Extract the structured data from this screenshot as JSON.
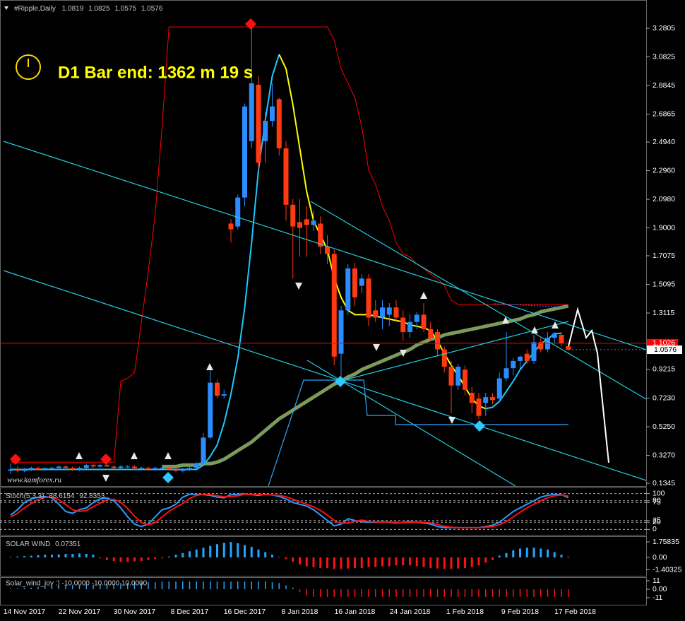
{
  "symbol": "#Ripple,Daily",
  "timer": "D1 Bar end: 1362 m 19 s",
  "watermark": "www.kamforex.ru",
  "chart_data": [
    {
      "type": "candlestick",
      "categories": [
        null,
        null,
        "14 Nov 2017",
        null,
        null,
        null,
        null,
        null,
        null,
        null,
        "22 Nov 2017",
        null,
        null,
        null,
        null,
        null,
        null,
        null,
        "30 Nov 2017",
        null,
        null,
        null,
        null,
        null,
        null,
        null,
        "8 Dec 2017",
        null,
        null,
        null,
        null,
        null,
        null,
        null,
        "16 Dec 2017",
        null,
        null,
        null,
        null,
        null,
        null,
        null,
        "8 Jan 2018",
        null,
        null,
        null,
        null,
        null,
        null,
        null,
        "16 Jan 2018",
        null,
        null,
        null,
        null,
        null,
        null,
        null,
        "24 Jan 2018",
        null,
        null,
        null,
        null,
        null,
        null,
        null,
        "1 Feb 2018",
        null,
        null,
        null,
        null,
        null,
        null,
        null,
        "9 Feb 2018",
        null,
        null,
        null,
        null,
        null,
        null,
        null,
        "17 Feb 2018"
      ],
      "open": [
        0.22,
        0.23,
        0.22,
        0.23,
        0.24,
        0.23,
        0.24,
        0.24,
        0.25,
        0.24,
        0.23,
        0.24,
        0.26,
        0.25,
        0.26,
        0.25,
        0.24,
        0.25,
        0.25,
        0.24,
        0.24,
        0.23,
        0.24,
        0.24,
        0.23,
        0.22,
        0.23,
        0.24,
        0.27,
        0.45,
        0.83,
        0.74,
        1.93,
        1.91,
        2.11,
        2.5,
        2.89,
        2.5,
        2.64,
        2.79,
        2.45,
        2.06,
        1.94,
        1.96,
        1.92,
        1.93,
        1.77,
        1.72,
        1.03,
        1.33,
        1.62,
        1.5,
        1.55,
        1.33,
        1.28,
        1.3,
        1.35,
        1.28,
        1.18,
        1.25,
        1.3,
        1.2,
        1.18,
        1.06,
        0.94,
        0.81,
        0.92,
        0.76,
        0.72,
        0.69,
        0.73,
        0.72,
        0.86,
        0.93,
        0.98,
        1.03,
        0.98,
        1.11,
        1.06,
        1.14,
        1.16,
        1.0819,
        null
      ],
      "high": [
        0.27,
        0.25,
        0.24,
        0.25,
        0.25,
        0.24,
        0.25,
        0.26,
        0.26,
        0.25,
        0.25,
        0.27,
        0.27,
        0.27,
        0.28,
        0.26,
        0.26,
        0.26,
        0.26,
        0.25,
        0.25,
        0.25,
        0.25,
        0.25,
        0.24,
        0.24,
        0.25,
        0.28,
        0.48,
        0.93,
        0.85,
        0.78,
        1.96,
        2.13,
        2.76,
        3.33,
        2.95,
        2.7,
        2.9,
        2.8,
        2.5,
        2.1,
        2.1,
        2.05,
        2.02,
        1.98,
        1.85,
        1.75,
        1.36,
        1.65,
        1.66,
        1.58,
        1.58,
        1.4,
        1.4,
        1.38,
        1.4,
        1.33,
        1.3,
        1.32,
        1.38,
        1.25,
        1.2,
        1.08,
        0.98,
        0.96,
        0.95,
        0.8,
        0.76,
        0.76,
        0.76,
        0.9,
        1.18,
        1.0,
        1.02,
        1.06,
        1.16,
        1.14,
        1.18,
        1.18,
        1.18,
        1.0825,
        null
      ],
      "low": [
        0.2,
        0.21,
        0.21,
        0.22,
        0.22,
        0.22,
        0.23,
        0.23,
        0.23,
        0.22,
        0.22,
        0.23,
        0.24,
        0.24,
        0.25,
        0.23,
        0.23,
        0.24,
        0.23,
        0.23,
        0.22,
        0.22,
        0.23,
        0.22,
        0.21,
        0.21,
        0.22,
        0.23,
        0.26,
        0.44,
        0.72,
        0.72,
        1.8,
        1.89,
        2.05,
        2.45,
        2.3,
        2.35,
        2.6,
        2.4,
        1.95,
        1.55,
        1.7,
        1.7,
        1.88,
        1.72,
        1.65,
        0.95,
        0.87,
        1.3,
        1.36,
        1.45,
        1.22,
        1.25,
        1.2,
        1.22,
        1.26,
        1.12,
        1.14,
        1.2,
        1.18,
        1.12,
        1.02,
        0.9,
        0.62,
        0.78,
        0.74,
        0.62,
        0.58,
        0.6,
        0.68,
        0.7,
        0.84,
        0.88,
        0.92,
        0.96,
        0.96,
        1.04,
        1.04,
        1.1,
        1.08,
        1.0575,
        null
      ],
      "close": [
        0.23,
        0.22,
        0.23,
        0.24,
        0.23,
        0.24,
        0.24,
        0.25,
        0.24,
        0.23,
        0.24,
        0.26,
        0.25,
        0.26,
        0.25,
        0.24,
        0.25,
        0.25,
        0.24,
        0.24,
        0.23,
        0.24,
        0.24,
        0.23,
        0.22,
        0.23,
        0.24,
        0.27,
        0.45,
        0.83,
        0.74,
        0.75,
        1.89,
        2.11,
        2.74,
        2.9,
        2.35,
        2.64,
        2.74,
        2.45,
        2.06,
        1.91,
        1.9,
        1.92,
        1.95,
        1.77,
        1.72,
        1.01,
        1.33,
        1.62,
        1.42,
        1.55,
        1.28,
        1.28,
        1.35,
        1.35,
        1.28,
        1.18,
        1.25,
        1.3,
        1.2,
        1.14,
        1.06,
        0.94,
        0.81,
        0.94,
        0.78,
        0.69,
        0.6,
        0.73,
        0.71,
        0.86,
        0.93,
        0.98,
        1.01,
        0.98,
        1.11,
        1.06,
        1.14,
        1.17,
        1.1,
        1.0576,
        null
      ],
      "up_color": "#2a8cff",
      "down_color": "#ff3a10",
      "overlays": [
        {
          "color": "#7c9a5c",
          "width": 5,
          "values": [
            null,
            null,
            null,
            null,
            null,
            null,
            null,
            null,
            null,
            null,
            null,
            null,
            null,
            null,
            null,
            null,
            null,
            null,
            null,
            null,
            null,
            null,
            0.25,
            0.25,
            0.25,
            0.26,
            0.26,
            0.26,
            0.27,
            0.27,
            0.28,
            0.3,
            0.33,
            0.36,
            0.39,
            0.42,
            0.46,
            0.5,
            0.54,
            0.58,
            0.61,
            0.64,
            0.67,
            0.7,
            0.73,
            0.76,
            0.79,
            0.82,
            0.84,
            0.87,
            0.89,
            0.92,
            0.94,
            0.96,
            0.98,
            1.0,
            1.02,
            1.04,
            1.06,
            1.09,
            1.11,
            1.13,
            1.14,
            1.16,
            1.17,
            1.18,
            1.19,
            1.2,
            1.21,
            1.22,
            1.23,
            1.24,
            1.25,
            1.26,
            1.27,
            1.29,
            1.3,
            1.32,
            1.33,
            1.34,
            1.35,
            1.36,
            null
          ]
        },
        {
          "color": "#ff0000",
          "width": 1,
          "values": [
            0.28,
            0.28,
            0.28,
            0.28,
            0.28,
            0.28,
            0.28,
            0.28,
            0.28,
            0.28,
            0.28,
            0.28,
            0.28,
            0.28,
            0.28,
            0.28,
            0.84,
            0.86,
            0.9,
            1.25,
            1.6,
            2.0,
            2.6,
            3.29,
            3.29,
            3.29,
            3.29,
            3.29,
            3.29,
            3.29,
            3.29,
            3.29,
            3.29,
            3.29,
            3.29,
            3.29,
            3.29,
            3.29,
            3.29,
            3.29,
            3.29,
            3.29,
            3.29,
            3.29,
            3.29,
            3.29,
            3.29,
            3.2,
            3.0,
            2.9,
            2.8,
            2.6,
            2.3,
            2.2,
            2.05,
            1.95,
            1.8,
            1.72,
            1.7,
            1.65,
            1.62,
            1.58,
            1.55,
            1.5,
            1.4,
            1.37,
            1.37,
            1.37,
            1.37,
            1.37,
            1.37,
            1.37,
            1.37,
            1.37,
            1.37,
            1.37,
            1.37,
            1.37,
            1.37,
            1.37,
            1.37,
            1.37,
            null
          ]
        },
        {
          "color": "#1ec8ff",
          "width": 2,
          "values": [
            0.23,
            0.23,
            0.23,
            0.23,
            0.23,
            0.23,
            0.23,
            0.23,
            0.23,
            0.23,
            0.23,
            0.23,
            0.23,
            0.23,
            0.23,
            0.23,
            0.23,
            0.23,
            0.23,
            0.23,
            0.23,
            0.23,
            0.23,
            0.23,
            0.23,
            0.23,
            0.23,
            0.23,
            0.26,
            0.32,
            0.4,
            0.55,
            0.75,
            1.0,
            1.35,
            1.8,
            2.3,
            2.65,
            2.95,
            3.1,
            null,
            null,
            null,
            null,
            null,
            null,
            null,
            null,
            null,
            null,
            null,
            null,
            null,
            null,
            null,
            null,
            null,
            null,
            null,
            null,
            null,
            null,
            null,
            null,
            null,
            null,
            null,
            null,
            null,
            0.65,
            0.66,
            0.7,
            0.77,
            0.84,
            0.92,
            0.98,
            1.04,
            1.1,
            1.13,
            1.17,
            1.17,
            null,
            null
          ]
        },
        {
          "color": "#ffff00",
          "width": 2,
          "values": [
            null,
            null,
            null,
            null,
            null,
            null,
            null,
            null,
            null,
            null,
            null,
            null,
            null,
            null,
            null,
            null,
            null,
            null,
            null,
            null,
            null,
            null,
            null,
            null,
            null,
            null,
            null,
            null,
            null,
            null,
            null,
            null,
            null,
            null,
            null,
            null,
            null,
            null,
            null,
            3.1,
            3.0,
            2.75,
            2.45,
            2.15,
            1.95,
            1.85,
            1.75,
            1.55,
            1.42,
            1.33,
            1.3,
            1.3,
            1.3,
            1.29,
            1.28,
            1.27,
            1.26,
            1.25,
            1.23,
            1.22,
            1.21,
            1.19,
            1.12,
            1.03,
            0.95,
            0.88,
            0.8,
            0.72,
            0.67,
            0.65,
            null,
            null,
            null,
            null,
            null,
            null,
            null,
            null,
            null,
            null,
            null,
            null,
            null
          ]
        }
      ],
      "price_line": {
        "value": 1.1026,
        "color": "#ff0000"
      },
      "ylim": [
        0.115,
        3.476
      ],
      "yticks": [
        3.2805,
        3.0825,
        2.8845,
        2.6865,
        {
          "value": 2.494,
          "label": "2.4940"
        },
        {
          "value": 2.296,
          "label": "2.2960"
        },
        {
          "value": 2.098,
          "label": "2.0980"
        },
        {
          "value": 1.9,
          "label": "1.9000"
        },
        1.7075,
        1.5095,
        1.3115,
        0.9215,
        {
          "value": 0.723,
          "label": "0.7230"
        },
        {
          "value": 0.525,
          "label": "0.5250"
        },
        {
          "value": 0.327,
          "label": "0.3270"
        },
        0.1345
      ]
    },
    {
      "type": "line",
      "title": "Stoch(5,3,3)",
      "lines": [
        {
          "color": "#2a9cff",
          "values": [
            40,
            55,
            75,
            85,
            90,
            92,
            88,
            70,
            50,
            45,
            55,
            60,
            75,
            85,
            88,
            80,
            60,
            35,
            15,
            8,
            15,
            35,
            55,
            60,
            70,
            90,
            98,
            98,
            97,
            95,
            90,
            88,
            97,
            98,
            99,
            97,
            95,
            98,
            96,
            92,
            85,
            75,
            70,
            65,
            55,
            40,
            25,
            10,
            15,
            30,
            25,
            22,
            20,
            20,
            22,
            20,
            18,
            20,
            22,
            20,
            18,
            15,
            8,
            5,
            5,
            5,
            5,
            5,
            5,
            8,
            12,
            20,
            35,
            50,
            60,
            70,
            80,
            90,
            95,
            98,
            97,
            88.6154,
            null
          ]
        },
        {
          "color": "#ff1010",
          "values": [
            35,
            45,
            60,
            72,
            83,
            89,
            90,
            83,
            69,
            55,
            50,
            53,
            63,
            73,
            83,
            84,
            76,
            58,
            37,
            19,
            13,
            19,
            35,
            50,
            62,
            72,
            86,
            95,
            98,
            97,
            94,
            91,
            92,
            94,
            98,
            98,
            97,
            97,
            96,
            95,
            91,
            84,
            77,
            70,
            63,
            53,
            40,
            25,
            17,
            18,
            23,
            26,
            22,
            21,
            21,
            21,
            20,
            19,
            20,
            21,
            20,
            18,
            14,
            9,
            6,
            5,
            5,
            5,
            5,
            6,
            8,
            13,
            22,
            35,
            48,
            60,
            70,
            80,
            88,
            94,
            96,
            92.8353,
            null
          ]
        }
      ],
      "grid": "dashed",
      "ylim": [
        -13,
        113
      ],
      "yticks": [
        100,
        80,
        75,
        25,
        20,
        0
      ]
    },
    {
      "type": "bar",
      "title": "SOLAR WIND",
      "values": [
        0.05,
        0.1,
        0.15,
        0.2,
        0.25,
        0.3,
        0.3,
        0.35,
        0.4,
        0.4,
        0.45,
        0.4,
        0.3,
        -0.1,
        -0.3,
        -0.4,
        -0.5,
        -0.5,
        -0.45,
        -0.4,
        -0.3,
        -0.2,
        -0.1,
        0.1,
        0.3,
        0.5,
        0.7,
        0.9,
        1.1,
        1.3,
        1.5,
        1.65,
        1.75,
        1.6,
        1.4,
        1.2,
        0.9,
        0.6,
        0.3,
        0.05,
        -0.2,
        -0.5,
        -0.8,
        -1.0,
        -1.1,
        -1.2,
        -1.2,
        -1.3,
        -1.3,
        -1.25,
        -1.2,
        -1.2,
        -1.1,
        -1.1,
        -1.0,
        -1.0,
        -0.9,
        -0.9,
        -0.9,
        -1.0,
        -1.1,
        -1.2,
        -1.25,
        -1.3,
        -1.3,
        -1.25,
        -1.2,
        -1.1,
        -0.9,
        -0.6,
        -0.3,
        0.2,
        0.5,
        0.8,
        1.0,
        1.1,
        1.1,
        1.0,
        0.9,
        0.6,
        0.3,
        0.07351,
        null
      ],
      "pos_color": "#1ea8ff",
      "neg_color": "#ff1010",
      "bar_width": 3,
      "ylim": [
        -2.08,
        2.32
      ],
      "yticks": [
        1.75835,
        {
          "value": 0,
          "label": "0.00"
        },
        -1.40325
      ]
    },
    {
      "type": "bar",
      "title": "Solar_wind_joy :) -10.0000 -10.0000 10.0000",
      "values": [
        1,
        1,
        2,
        2,
        3,
        3,
        4,
        4,
        5,
        5,
        5,
        6,
        6,
        6,
        7,
        7,
        8,
        8,
        9,
        9,
        9,
        9,
        10,
        10,
        10,
        10,
        10,
        10,
        10,
        10,
        10,
        10,
        10,
        10,
        10,
        10,
        10,
        10,
        9,
        8,
        5,
        2,
        -4,
        -8,
        -10,
        -10,
        -10,
        -10,
        -10,
        -10,
        -10,
        -10,
        -10,
        -10,
        -10,
        -10,
        -10,
        -10,
        -10,
        -10,
        -10,
        -10,
        -10,
        -10,
        -10,
        -10,
        -10,
        -10,
        -10,
        -10,
        -10,
        -10,
        -10,
        -10,
        -10,
        -10,
        -10,
        -10,
        -10,
        -10,
        -10,
        -10,
        null
      ],
      "pos_color": "#1ea8ff",
      "neg_color": "#ff1010",
      "bar_width": 1.5,
      "ylim": [
        -20.2,
        14.7
      ],
      "yticks": [
        11,
        {
          "value": 0,
          "label": "0.00"
        },
        -11
      ]
    }
  ]
}
